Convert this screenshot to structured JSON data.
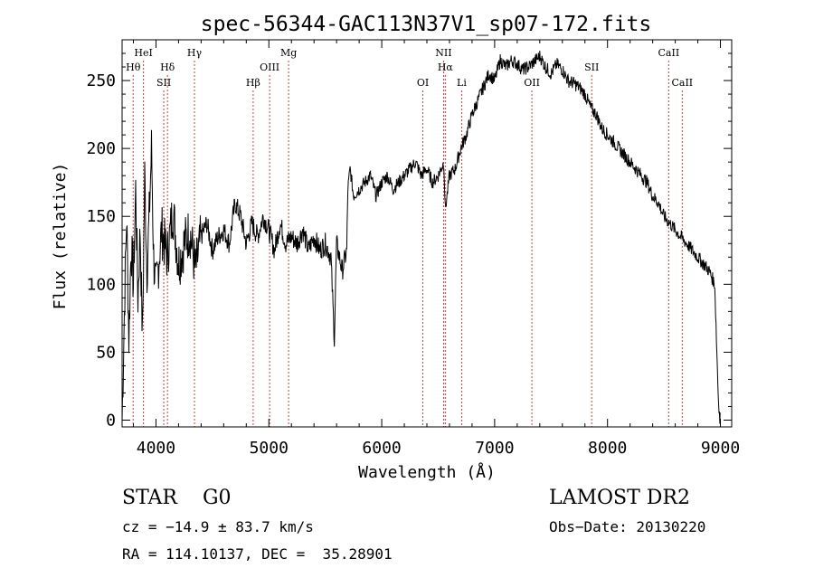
{
  "chart_data": {
    "type": "line",
    "title": "spec-56344-GAC113N37V1_sp07-172.fits",
    "xlabel": "Wavelength (Å)",
    "ylabel": "Flux (relative)",
    "xlim": [
      3700,
      9100
    ],
    "ylim": [
      -5,
      280
    ],
    "xticks": [
      4000,
      5000,
      6000,
      7000,
      8000,
      9000
    ],
    "yticks": [
      0,
      50,
      100,
      150,
      200,
      250
    ],
    "grid": false,
    "line_color": "#000000",
    "marker_color": "#d04040",
    "series": [
      {
        "x": [
          3700,
          3720,
          3740,
          3760,
          3780,
          3800,
          3820,
          3840,
          3860,
          3880,
          3900,
          3920,
          3940,
          3960,
          3980,
          4000,
          4050,
          4100,
          4150,
          4200,
          4250,
          4300,
          4350,
          4400,
          4450,
          4500,
          4550,
          4600,
          4650,
          4700,
          4750,
          4800,
          4850,
          4900,
          4950,
          5000,
          5050,
          5100,
          5150,
          5200,
          5250,
          5300,
          5350,
          5400,
          5450,
          5500,
          5550,
          5580,
          5600,
          5650,
          5690,
          5700,
          5720,
          5750,
          5800,
          5850,
          5900,
          5950,
          6000,
          6050,
          6100,
          6150,
          6200,
          6250,
          6300,
          6350,
          6400,
          6450,
          6500,
          6550,
          6563,
          6600,
          6650,
          6700,
          6750,
          6800,
          6850,
          6900,
          6950,
          7000,
          7050,
          7100,
          7150,
          7200,
          7250,
          7300,
          7350,
          7400,
          7450,
          7500,
          7550,
          7600,
          7650,
          7700,
          7750,
          7800,
          7850,
          7900,
          7950,
          8000,
          8050,
          8100,
          8150,
          8200,
          8250,
          8300,
          8350,
          8400,
          8450,
          8500,
          8550,
          8600,
          8650,
          8700,
          8750,
          8800,
          8850,
          8900,
          8950,
          8980,
          8995,
          9000
        ],
        "y": [
          0,
          80,
          150,
          60,
          130,
          100,
          170,
          90,
          140,
          60,
          180,
          110,
          150,
          200,
          120,
          95,
          140,
          120,
          155,
          115,
          130,
          140,
          110,
          135,
          145,
          125,
          135,
          140,
          130,
          160,
          150,
          130,
          145,
          135,
          150,
          140,
          125,
          145,
          130,
          135,
          130,
          140,
          125,
          135,
          125,
          130,
          120,
          60,
          130,
          110,
          125,
          170,
          185,
          165,
          170,
          175,
          180,
          165,
          175,
          180,
          170,
          175,
          180,
          185,
          190,
          180,
          185,
          175,
          180,
          190,
          155,
          180,
          185,
          200,
          210,
          225,
          235,
          245,
          255,
          250,
          265,
          260,
          265,
          262,
          258,
          260,
          264,
          268,
          260,
          255,
          262,
          258,
          250,
          248,
          245,
          240,
          230,
          225,
          215,
          210,
          205,
          200,
          195,
          190,
          185,
          180,
          175,
          165,
          160,
          150,
          145,
          140,
          135,
          130,
          125,
          120,
          115,
          110,
          100,
          20,
          0,
          5
        ]
      }
    ],
    "lines": [
      {
        "name": "Hθ",
        "x": 3798,
        "row": 1
      },
      {
        "name": "HeI",
        "x": 3889,
        "row": 0
      },
      {
        "name": "SII",
        "x": 4069,
        "row": 2
      },
      {
        "name": "Hδ",
        "x": 4102,
        "row": 1
      },
      {
        "name": "Hγ",
        "x": 4341,
        "row": 0
      },
      {
        "name": "Hβ",
        "x": 4861,
        "row": 2
      },
      {
        "name": "OIII",
        "x": 5007,
        "row": 1
      },
      {
        "name": "Mg",
        "x": 5175,
        "row": 0
      },
      {
        "name": "OI",
        "x": 6364,
        "row": 2
      },
      {
        "name": "NII",
        "x": 6548,
        "row": 0
      },
      {
        "name": "Hα",
        "x": 6563,
        "row": 1
      },
      {
        "name": "Li",
        "x": 6708,
        "row": 2
      },
      {
        "name": "OII",
        "x": 7330,
        "row": 2
      },
      {
        "name": "SII",
        "x": 7860,
        "row": 1
      },
      {
        "name": "CaII",
        "x": 8542,
        "row": 0
      },
      {
        "name": "CaII",
        "x": 8662,
        "row": 2
      }
    ]
  },
  "info": {
    "class": "STAR",
    "subclass": "G0",
    "survey": "LAMOST DR2",
    "cz": "cz = −14.9 ± 83.7 km/s",
    "obs_date": "Obs−Date: 20130220",
    "coords": "RA = 114.10137, DEC =  35.28901"
  }
}
